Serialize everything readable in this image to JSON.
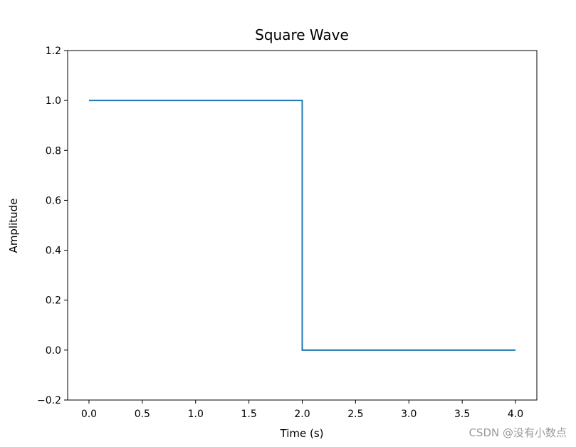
{
  "chart_data": {
    "type": "line",
    "title": "Square Wave",
    "xlabel": "Time (s)",
    "ylabel": "Amplitude",
    "xlim": [
      -0.2,
      4.2
    ],
    "ylim": [
      -0.2,
      1.2
    ],
    "xticks": [
      0.0,
      0.5,
      1.0,
      1.5,
      2.0,
      2.5,
      3.0,
      3.5,
      4.0
    ],
    "yticks": [
      -0.2,
      0.0,
      0.2,
      0.4,
      0.6,
      0.8,
      1.0,
      1.2
    ],
    "xtick_labels": [
      "0.0",
      "0.5",
      "1.0",
      "1.5",
      "2.0",
      "2.5",
      "3.0",
      "3.5",
      "4.0"
    ],
    "ytick_labels": [
      "−0.2",
      "0.0",
      "0.2",
      "0.4",
      "0.6",
      "0.8",
      "1.0",
      "1.2"
    ],
    "grid": false,
    "series": [
      {
        "color": "#1f77b4",
        "x": [
          0.0,
          2.0,
          2.0,
          4.0
        ],
        "y": [
          1.0,
          1.0,
          0.0,
          0.0
        ]
      }
    ]
  },
  "watermark": "CSDN @没有小数点"
}
